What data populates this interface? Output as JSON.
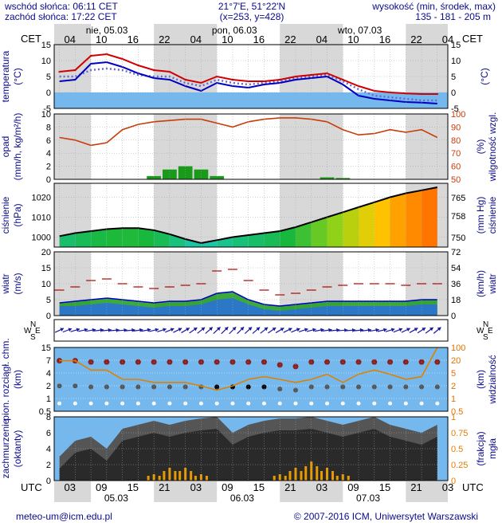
{
  "header": {
    "sunrise": "wschód słońca: 06:11 CET",
    "sunset": "zachód słońca: 17:22 CET",
    "coords": "21°7'E, 51°22'N",
    "grid": "(x=253, y=428)",
    "altitude_label": "wysokość (min, środek, max)",
    "altitude_values": "135 - 181 - 205 m"
  },
  "top_axis": {
    "tz": "CET",
    "days": [
      "nie, 05.03",
      "pon, 06.03",
      "wto, 07.03"
    ],
    "hours": [
      "04",
      "10",
      "16",
      "22",
      "04",
      "10",
      "16",
      "22",
      "04",
      "10",
      "16",
      "22",
      "04"
    ]
  },
  "bottom_axis": {
    "tz": "UTC",
    "hours": [
      "03",
      "09",
      "15",
      "21",
      "03",
      "09",
      "15",
      "21",
      "03",
      "09",
      "15",
      "21",
      "03"
    ],
    "dates": [
      "05.03",
      "06.03",
      "07.03"
    ]
  },
  "footer": {
    "email": "meteo-um@icm.edu.pl",
    "copyright": "© 2007-2016 ICM, Uniwersytet Warszawski"
  },
  "panel_labels": {
    "temperature_left": "temperatura",
    "temperature_unit": "(°C)",
    "precip_left": "opad",
    "precip_unit": "(mm/h, kg/m²/h)",
    "humidity_unit": "(%)",
    "humidity_right": "wilgotność wzgl.",
    "pressure_left": "ciśnienie",
    "pressure_unit": "(hPa)",
    "pressure_unit_right": "(mm Hg)",
    "pressure_right": "ciśnienie",
    "wind_left": "wiatr",
    "wind_unit": "(m/s)",
    "wind_unit_right": "(km/h)",
    "wind_right": "wiatr",
    "cloud_left": "pion. rozciągł. chm.",
    "cloud_unit": "(km)",
    "visibility_unit": "(km)",
    "visibility_right": "widzialność",
    "cover_left": "zachmurzenie",
    "cover_unit": "(oktanty)",
    "fog_unit": "(frakcja)",
    "fog_right": "mgła",
    "compass": [
      "N",
      "W",
      "E",
      "S"
    ]
  },
  "colors": {
    "temperature": "#d00000",
    "dewpoint": "#0000c0",
    "humidity": "#c83c0a",
    "precip": "#1a9a1a",
    "sky": "#74b8ee",
    "grey": "#d8d8d8",
    "pressure_low": "#19c8b4",
    "pressure_high": "#ff6a00",
    "wind_line": "#0000c0",
    "cloud_dark": "#2a2a2a",
    "fog": "#e89a00"
  },
  "chart_data": [
    {
      "type": "line",
      "name": "temperature",
      "yticks": [
        -5,
        0,
        5,
        10,
        15
      ],
      "ylim": [
        -5,
        15
      ],
      "x_hours": [
        0,
        3,
        6,
        9,
        12,
        15,
        18,
        21,
        24,
        27,
        30,
        33,
        36,
        39,
        42,
        45,
        48,
        51,
        54,
        57,
        60,
        63,
        66,
        69,
        72
      ],
      "series": [
        {
          "values": [
            6.5,
            7,
            11.5,
            12,
            10.5,
            8.5,
            7,
            6.5,
            4,
            3,
            5,
            4,
            3.5,
            3.5,
            4,
            5,
            5.5,
            6,
            4,
            2,
            0.5,
            0,
            -0.3,
            -0.5,
            -0.5
          ]
        },
        {
          "values": [
            3.5,
            4,
            9,
            9.5,
            8,
            6,
            4.5,
            4,
            2,
            0.5,
            3,
            2,
            1.5,
            2.5,
            3,
            4,
            4.5,
            5,
            2.5,
            -1,
            -2,
            -2.5,
            -3,
            -3.2,
            -3.5
          ]
        },
        {
          "values": [
            5,
            5,
            7,
            7.5,
            7,
            5.5,
            5,
            5,
            3,
            2,
            4,
            3,
            2.5,
            3,
            3.5,
            4.5,
            5,
            5.5,
            3.5,
            1,
            -1,
            -1.5,
            -2,
            -2.5,
            -2.5
          ]
        }
      ]
    },
    {
      "type": "bar",
      "name": "precipitation",
      "yticks": [
        0,
        2,
        4,
        6,
        8,
        10
      ],
      "ylim": [
        0,
        10
      ],
      "y2ticks": [
        50,
        60,
        70,
        80,
        90,
        100
      ],
      "y2lim": [
        50,
        100
      ],
      "x_hours": [
        0,
        3,
        6,
        9,
        12,
        15,
        18,
        21,
        24,
        27,
        30,
        33,
        36,
        39,
        42,
        45,
        48,
        51,
        54,
        57,
        60,
        63,
        66,
        69,
        72
      ],
      "values": [
        0,
        0,
        0,
        0,
        0,
        0,
        0.5,
        1.5,
        2,
        1.5,
        0.5,
        0,
        0,
        0,
        0,
        0,
        0,
        0.3,
        0.2,
        0,
        0,
        0,
        0,
        0,
        0
      ],
      "series": [
        {
          "values": [
            82,
            80,
            76,
            78,
            88,
            92,
            94,
            95,
            96,
            96,
            93,
            90,
            94,
            96,
            97,
            97,
            96,
            94,
            88,
            84,
            85,
            88,
            86,
            88,
            82
          ]
        }
      ]
    },
    {
      "type": "area",
      "name": "pressure",
      "yticks": [
        1000,
        1010,
        1020
      ],
      "ylim": [
        995,
        1027
      ],
      "y2ticks": [
        750,
        758,
        765
      ],
      "x_hours": [
        0,
        3,
        6,
        9,
        12,
        15,
        18,
        21,
        24,
        27,
        30,
        33,
        36,
        39,
        42,
        45,
        48,
        51,
        54,
        57,
        60,
        63,
        66,
        69,
        72
      ],
      "values": [
        1000.5,
        1002,
        1003,
        1004,
        1004.5,
        1004.5,
        1003.5,
        1001.5,
        999,
        997,
        998.5,
        1000,
        1001,
        1002,
        1003,
        1005,
        1007.5,
        1010,
        1012.5,
        1015,
        1017.5,
        1020,
        1022,
        1023.5,
        1025
      ]
    },
    {
      "type": "area",
      "name": "wind",
      "yticks": [
        0,
        5,
        10,
        15,
        20
      ],
      "ylim": [
        0,
        20
      ],
      "y2ticks": [
        0,
        18,
        36,
        54,
        72
      ],
      "x_hours": [
        0,
        3,
        6,
        9,
        12,
        15,
        18,
        21,
        24,
        27,
        30,
        33,
        36,
        39,
        42,
        45,
        48,
        51,
        54,
        57,
        60,
        63,
        66,
        69,
        72
      ],
      "values": [
        4,
        4.5,
        5,
        5.5,
        5,
        4.5,
        4,
        4.5,
        4.5,
        5,
        7,
        7.5,
        5,
        3.5,
        3,
        3.5,
        4,
        4.5,
        4.5,
        4.5,
        4.5,
        4.5,
        4.5,
        5,
        5
      ],
      "series": [
        {
          "values": [
            3,
            3,
            3.5,
            4,
            3.5,
            3,
            2.5,
            3,
            3,
            3.5,
            5,
            5.5,
            3.5,
            2,
            1.5,
            2,
            2.5,
            3,
            3,
            3,
            3,
            3,
            3,
            3.5,
            3.5
          ]
        },
        {
          "values": [
            8,
            9,
            11,
            11.5,
            10,
            9,
            8.5,
            9,
            9.5,
            10,
            14,
            14.5,
            11,
            8,
            6.5,
            7,
            8,
            9,
            9.5,
            10,
            10,
            10,
            9.5,
            10,
            10
          ]
        }
      ]
    },
    {
      "type": "scatter",
      "name": "cloud_vertical_extent",
      "yticks": [
        0.5,
        1.0,
        2.0,
        4.0,
        7.0,
        15.0
      ],
      "ylim": [
        0,
        15
      ],
      "y2ticks": [
        0.5,
        1,
        2,
        5,
        20,
        100
      ],
      "x_hours": [
        0,
        3,
        6,
        9,
        12,
        15,
        18,
        21,
        24,
        27,
        30,
        33,
        36,
        39,
        42,
        45,
        48,
        51,
        54,
        57,
        60,
        63,
        66,
        69,
        72
      ],
      "values": [
        8,
        8,
        7.5,
        7.5,
        7.5,
        7.5,
        7.5,
        7.5,
        7.5,
        7.5,
        7.5,
        7.5,
        7.5,
        7.5,
        6.5,
        6,
        7.5,
        7.5,
        7.5,
        7.5,
        7.5,
        7.5,
        7.5,
        7.5,
        7.5
      ],
      "series": [
        {
          "values": [
            8,
            8,
            5,
            5,
            3,
            3,
            2.5,
            2.5,
            2.5,
            2,
            1.5,
            2,
            3,
            3.5,
            3,
            2.5,
            3,
            4,
            2.5,
            4,
            5,
            4,
            3,
            3.5,
            15
          ]
        }
      ]
    },
    {
      "type": "area",
      "name": "cloud_cover",
      "yticks": [
        0,
        2,
        4,
        6,
        8
      ],
      "ylim": [
        0,
        8
      ],
      "y2ticks": [
        0,
        0.25,
        0.5,
        0.75,
        1
      ],
      "x_hours": [
        0,
        3,
        6,
        9,
        12,
        15,
        18,
        21,
        24,
        27,
        30,
        33,
        36,
        39,
        42,
        45,
        48,
        51,
        54,
        57,
        60,
        63,
        66,
        69,
        72
      ],
      "values": [
        3,
        5,
        5.5,
        4,
        6.5,
        7,
        7.5,
        7,
        7.5,
        7.8,
        8,
        6,
        7,
        7.5,
        7.8,
        7.8,
        8,
        7.5,
        7,
        7.5,
        8,
        7,
        6.5,
        6,
        7
      ],
      "series": [
        {
          "values": [
            0,
            0,
            0,
            0,
            0,
            0,
            0.1,
            0.2,
            0.2,
            0.1,
            0,
            0,
            0,
            0,
            0.1,
            0.2,
            0.3,
            0.2,
            0.1,
            0,
            0,
            0,
            0,
            0,
            0
          ]
        }
      ]
    }
  ]
}
